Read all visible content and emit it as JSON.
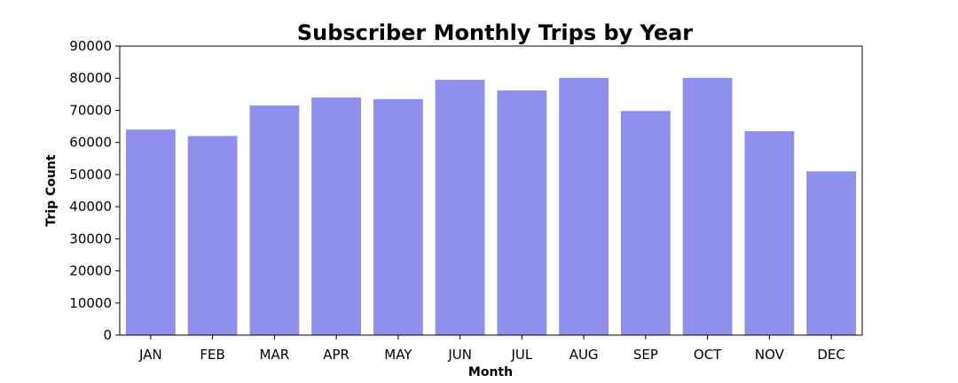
{
  "chart_data": {
    "type": "bar",
    "title": "Subscriber Monthly Trips by Year",
    "xlabel": "Month",
    "ylabel": "Trip Count",
    "categories": [
      "JAN",
      "FEB",
      "MAR",
      "APR",
      "MAY",
      "JUN",
      "JUL",
      "AUG",
      "SEP",
      "OCT",
      "NOV",
      "DEC"
    ],
    "values": [
      64000,
      62000,
      71500,
      74000,
      73500,
      79500,
      76200,
      80100,
      69800,
      80100,
      63500,
      51000
    ],
    "ylim": [
      0,
      90000
    ],
    "yticks": [
      0,
      10000,
      20000,
      30000,
      40000,
      50000,
      60000,
      70000,
      80000,
      90000
    ],
    "bar_color": "#8f8fee",
    "grid": false,
    "legend": false
  }
}
